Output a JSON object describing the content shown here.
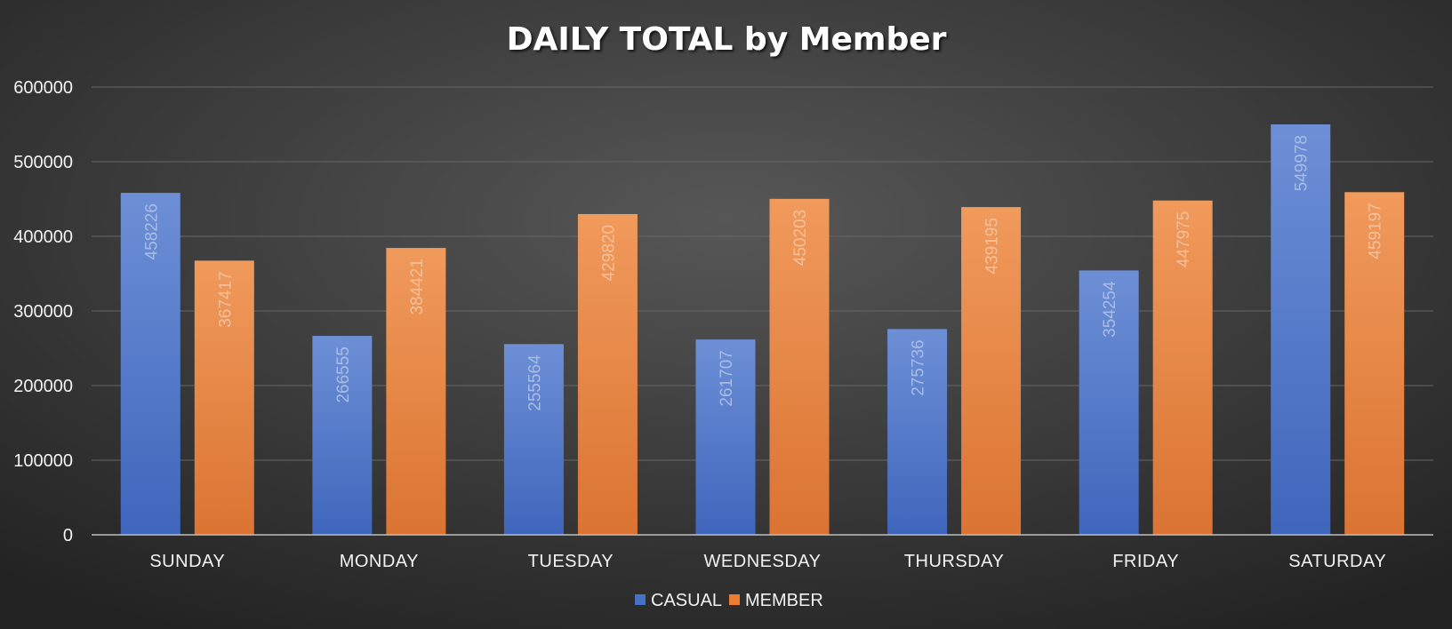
{
  "chart_data": {
    "type": "bar",
    "title": "DAILY TOTAL by Member",
    "categories": [
      "SUNDAY",
      "MONDAY",
      "TUESDAY",
      "WEDNESDAY",
      "THURSDAY",
      "FRIDAY",
      "SATURDAY"
    ],
    "series": [
      {
        "name": "CASUAL",
        "values": [
          458226,
          266555,
          255564,
          261707,
          275736,
          354254,
          549978
        ],
        "color": "#4472c4"
      },
      {
        "name": "MEMBER",
        "values": [
          367417,
          384421,
          429820,
          450203,
          439195,
          447975,
          459197
        ],
        "color": "#ed7d31"
      }
    ],
    "ylim": [
      0,
      600000
    ],
    "yticks": [
      0,
      100000,
      200000,
      300000,
      400000,
      500000,
      600000
    ],
    "grid": true,
    "legend": "bottom",
    "data_labels": "vertical-inside-top"
  }
}
